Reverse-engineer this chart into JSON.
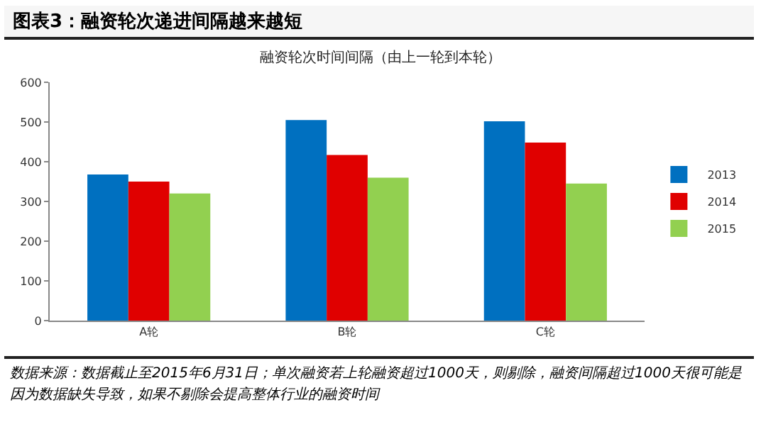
{
  "chart_data": {
    "type": "bar",
    "title": "图表3：融资轮次递进间隔越来越短",
    "subtitle": "融资轮次时间间隔（由上一轮到本轮）",
    "categories": [
      "A轮",
      "B轮",
      "C轮"
    ],
    "series": [
      {
        "name": "2013",
        "color": "#0070c0",
        "values": [
          368,
          505,
          502
        ]
      },
      {
        "name": "2014",
        "color": "#e00000",
        "values": [
          350,
          417,
          448
        ]
      },
      {
        "name": "2015",
        "color": "#92d050",
        "values": [
          320,
          360,
          345
        ]
      }
    ],
    "ylim": [
      0,
      600
    ],
    "yticks": [
      0,
      100,
      200,
      300,
      400,
      500,
      600
    ],
    "grid": false,
    "legend": "right",
    "annotations": [
      "数据来源：数据截止至2015年6月31日；单次融资若上轮融资超过1000天，则剔除，融资间隔超过1000天很可能是因为数据缺失导致，如果不剔除会提高整体行业的融资时间"
    ]
  }
}
